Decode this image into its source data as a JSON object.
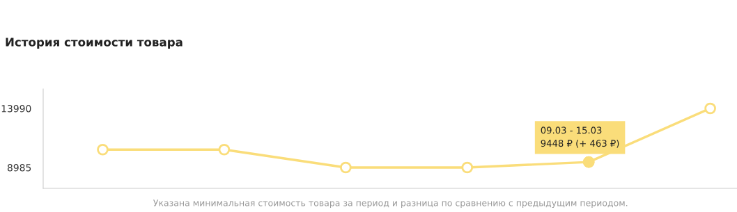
{
  "chart_data": {
    "type": "line",
    "title": "История стоимости товара",
    "categories": [
      null,
      null,
      null,
      null,
      null,
      null
    ],
    "series": [
      {
        "color": "#fadd7a",
        "values": [
          10500,
          10500,
          8985,
          8985,
          9448,
          13990
        ]
      }
    ],
    "ylim": [
      7218,
      15639
    ],
    "yticks": [
      8985,
      13990
    ],
    "tick_labels": "y",
    "grid": false,
    "legend": false,
    "marker": "circle",
    "line_style": "solid",
    "annotations": [
      {
        "text": "09.03 - 15.03\n9448 ₽ (+ 463 ₽)",
        "y": 9448
      },
      "Указана минимальная стоимость товара за период и разница по сравнению с предыдущим периодом."
    ]
  }
}
